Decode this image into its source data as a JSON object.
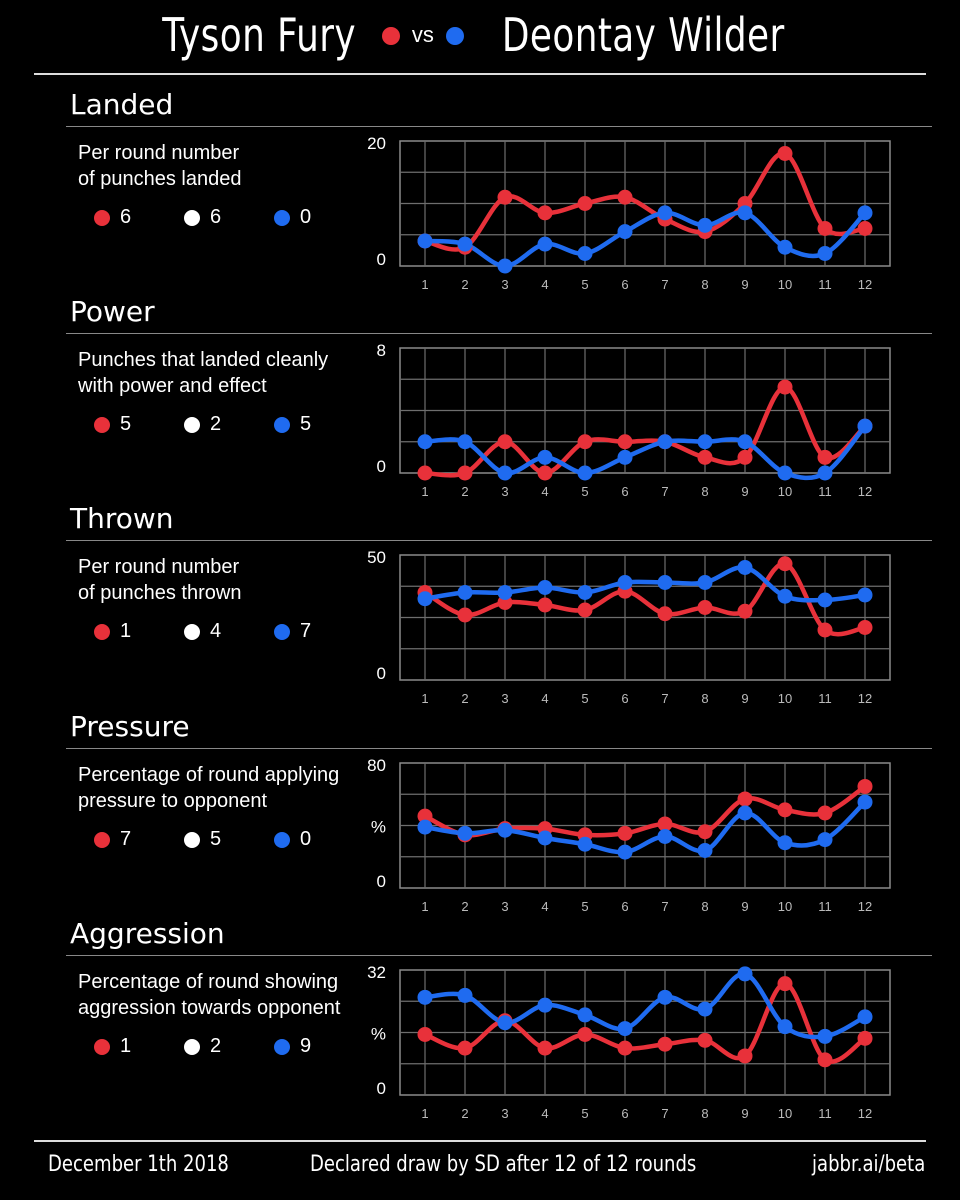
{
  "header": {
    "left_name": "Tyson Fury",
    "vs": "vs",
    "right_name": "Deontay Wilder"
  },
  "colors": {
    "fury": "#e8313a",
    "wilder": "#1f6bf0",
    "neutral": "#ffffff"
  },
  "footer": {
    "date": "December 1th 2018",
    "result": "Declared draw by SD after 12 of 12 rounds",
    "site": "jabbr.ai/beta"
  },
  "chart_data": [
    {
      "type": "line",
      "title": "Landed",
      "description_1": "Per round number",
      "description_2": "of punches landed",
      "legend": [
        "6",
        "6",
        "0"
      ],
      "ytick_top": "20",
      "ytick_mid": "",
      "ytick_bottom": "0",
      "ylim": [
        0,
        20
      ],
      "x": [
        "1",
        "2",
        "3",
        "4",
        "5",
        "6",
        "7",
        "8",
        "9",
        "10",
        "11",
        "12"
      ],
      "series": [
        {
          "color": "red",
          "values": [
            4,
            3,
            11,
            8.5,
            10,
            11,
            7.5,
            5.5,
            10,
            18,
            6,
            6
          ]
        },
        {
          "color": "blue",
          "values": [
            4,
            3.5,
            0,
            3.5,
            2,
            5.5,
            8.5,
            6.5,
            8.5,
            3,
            2,
            8.5
          ]
        }
      ]
    },
    {
      "type": "line",
      "title": "Power",
      "description_1": "Punches that landed cleanly",
      "description_2": "with power and effect",
      "legend": [
        "5",
        "2",
        "5"
      ],
      "ytick_top": "8",
      "ytick_mid": "",
      "ytick_bottom": "0",
      "ylim": [
        0,
        8
      ],
      "x": [
        "1",
        "2",
        "3",
        "4",
        "5",
        "6",
        "7",
        "8",
        "9",
        "10",
        "11",
        "12"
      ],
      "series": [
        {
          "color": "red",
          "values": [
            0,
            0,
            2,
            0,
            2,
            2,
            2,
            1,
            1,
            5.5,
            1,
            3
          ]
        },
        {
          "color": "blue",
          "values": [
            2,
            2,
            0,
            1,
            0,
            1,
            2,
            2,
            2,
            0,
            0,
            3
          ]
        }
      ]
    },
    {
      "type": "line",
      "title": "Thrown",
      "description_1": "Per round number",
      "description_2": "of punches thrown",
      "legend": [
        "1",
        "4",
        "7"
      ],
      "ytick_top": "50",
      "ytick_mid": "",
      "ytick_bottom": "0",
      "ylim": [
        0,
        50
      ],
      "x": [
        "1",
        "2",
        "3",
        "4",
        "5",
        "6",
        "7",
        "8",
        "9",
        "10",
        "11",
        "12"
      ],
      "series": [
        {
          "color": "red",
          "values": [
            35,
            26,
            31,
            30,
            28,
            35.5,
            26.5,
            29,
            27.5,
            46.5,
            20,
            21
          ]
        },
        {
          "color": "blue",
          "values": [
            32.5,
            35,
            35,
            37,
            35,
            39,
            39,
            39,
            45,
            33.5,
            32,
            34
          ]
        }
      ]
    },
    {
      "type": "line",
      "title": "Pressure",
      "description_1": "Percentage of round applying",
      "description_2": "pressure to opponent",
      "legend": [
        "7",
        "5",
        "0"
      ],
      "ytick_top": "80",
      "ytick_mid": "%",
      "ytick_bottom": "0",
      "ylim": [
        0,
        80
      ],
      "x": [
        "1",
        "2",
        "3",
        "4",
        "5",
        "6",
        "7",
        "8",
        "9",
        "10",
        "11",
        "12"
      ],
      "series": [
        {
          "color": "red",
          "values": [
            46,
            34,
            38,
            38,
            34,
            35,
            41,
            36,
            57,
            50,
            48,
            65
          ]
        },
        {
          "color": "blue",
          "values": [
            39,
            35,
            37,
            32,
            28,
            23,
            33,
            24,
            48,
            29,
            31,
            55
          ]
        }
      ]
    },
    {
      "type": "line",
      "title": "Aggression",
      "description_1": "Percentage of round showing",
      "description_2": "aggression towards opponent",
      "legend": [
        "1",
        "2",
        "9"
      ],
      "ytick_top": "32",
      "ytick_mid": "%",
      "ytick_bottom": "0",
      "ylim": [
        0,
        32
      ],
      "x": [
        "1",
        "2",
        "3",
        "4",
        "5",
        "6",
        "7",
        "8",
        "9",
        "10",
        "11",
        "12"
      ],
      "series": [
        {
          "color": "red",
          "values": [
            15.5,
            12,
            19,
            12,
            15.5,
            12,
            13,
            14,
            10,
            28.5,
            9,
            14.5
          ]
        },
        {
          "color": "blue",
          "values": [
            25,
            25.5,
            18.5,
            23,
            20.5,
            17,
            25,
            22,
            31,
            17.5,
            15,
            20
          ]
        }
      ]
    }
  ]
}
